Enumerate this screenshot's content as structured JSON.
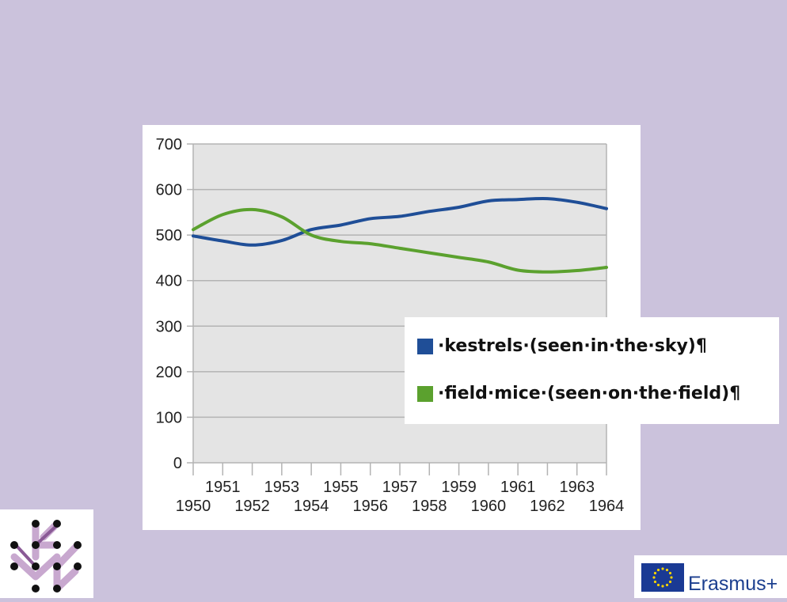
{
  "chart_data": {
    "type": "line",
    "x": [
      "1950",
      "1951",
      "1952",
      "1953",
      "1954",
      "1955",
      "1956",
      "1957",
      "1958",
      "1959",
      "1960",
      "1961",
      "1962",
      "1963",
      "1964"
    ],
    "series": [
      {
        "name": "kestrels (seen in the sky)",
        "color": "#1f4e97",
        "values": [
          498,
          487,
          478,
          488,
          512,
          522,
          536,
          541,
          552,
          561,
          575,
          578,
          580,
          572,
          558
        ]
      },
      {
        "name": "field mice (seen on the field)",
        "color": "#5ba12e",
        "values": [
          512,
          545,
          556,
          540,
          500,
          486,
          481,
          471,
          461,
          451,
          441,
          423,
          419,
          422,
          429
        ]
      }
    ],
    "ylim": [
      0,
      700
    ],
    "yticks": [
      0,
      100,
      200,
      300,
      400,
      500,
      600,
      700
    ],
    "grid": true,
    "legend_position": "bottom-right"
  },
  "legend": {
    "kestrels_label": "·kestrels·(seen·in·the·sky)¶",
    "mice_label": "·field·mice·(seen·on·the·field)¶"
  },
  "footer": {
    "erasmus_label": "Erasmus+",
    "logo_icon": "arrows-dots-logo-icon",
    "flag_icon": "eu-flag-icon"
  }
}
